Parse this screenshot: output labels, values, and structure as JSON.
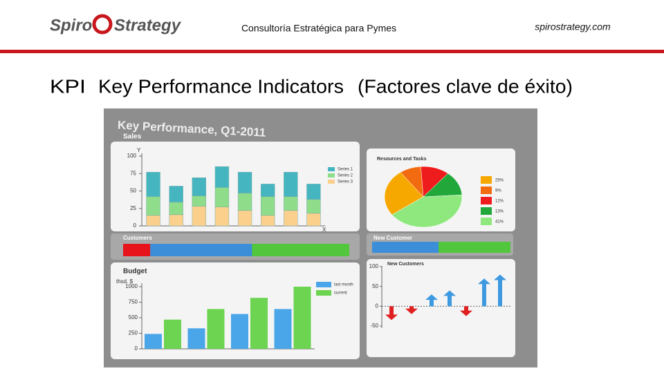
{
  "header": {
    "brand_left": "Spiro",
    "brand_right": "Strategy",
    "tagline": "Consultoría Estratégica para Pymes",
    "url": "spirostrategy.com"
  },
  "heading": {
    "acronym": "KPI",
    "title": "Key Performance Indicators",
    "subtitle": "(Factores clave de éxito)"
  },
  "dashboard": {
    "title": "Key Performance, Q1-2011",
    "sales": {
      "title": "Sales",
      "y_label": "Y",
      "x_label": "X",
      "ylim": [
        0,
        100
      ],
      "yticks": [
        0,
        25,
        50,
        75,
        100
      ],
      "series": [
        {
          "name": "Series 1",
          "color": "#45b5c0",
          "values": [
            35,
            23,
            26,
            30,
            30,
            18,
            35,
            22
          ]
        },
        {
          "name": "Series 2",
          "color": "#8fdc8a",
          "values": [
            27,
            18,
            15,
            28,
            25,
            27,
            20,
            20
          ]
        },
        {
          "name": "Series 3",
          "color": "#fbd08c",
          "values": [
            15,
            16,
            28,
            27,
            22,
            15,
            22,
            18
          ]
        }
      ]
    },
    "resources": {
      "title": "Resources and Tasks",
      "values": [
        25,
        9,
        12,
        13,
        41
      ],
      "value_labels": [
        "25%",
        "9%",
        "12%",
        "13%",
        "41%"
      ],
      "colors": [
        "#f7a800",
        "#f26b10",
        "#ee1c1c",
        "#22a83a",
        "#8ee87e"
      ]
    },
    "customers": {
      "title": "Customers",
      "values": [
        12,
        45,
        43
      ],
      "colors": [
        "#e8141c",
        "#3d8ed8",
        "#52c63c"
      ]
    },
    "new_customer_bar": {
      "title": "New Customer",
      "values": [
        48,
        52
      ],
      "colors": [
        "#3d8ed8",
        "#52c63c"
      ]
    },
    "budget": {
      "title": "Budget",
      "unit": "thsd. $",
      "ylim": [
        0,
        1000
      ],
      "yticks": [
        0,
        250,
        500,
        750,
        1000
      ],
      "series": [
        {
          "name": "last month",
          "color": "#4aa6e8",
          "values": [
            240,
            330,
            560,
            640
          ]
        },
        {
          "name": "current",
          "color": "#6cd450",
          "values": [
            470,
            640,
            820,
            1000
          ]
        }
      ]
    },
    "new_customers": {
      "title": "New Customers",
      "ylim": [
        -50,
        100
      ],
      "yticks": [
        100,
        50,
        0,
        -50
      ],
      "values": [
        -35,
        -20,
        30,
        40,
        -25,
        70,
        80
      ],
      "up_color": "#3d9ae0",
      "down_color": "#e02020"
    }
  }
}
